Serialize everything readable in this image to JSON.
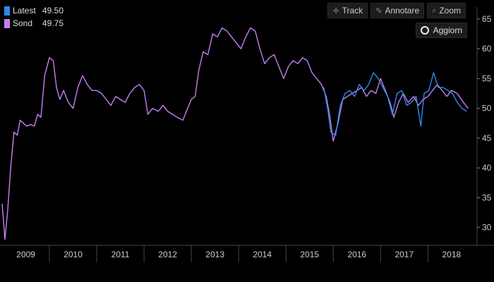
{
  "legend": {
    "items": [
      {
        "name": "Latest",
        "value": "49.50",
        "color": "#2b8be8"
      },
      {
        "name": "Sond",
        "value": "49.75",
        "color": "#c77ef2"
      }
    ]
  },
  "toolbar": {
    "track_label": "Track",
    "track_icon": "crosshair-icon",
    "annotate_label": "Annotare",
    "annotate_icon": "pencil-icon",
    "zoom_label": "Zoom",
    "zoom_icon": "magnifier-icon",
    "refresh_label": "Aggiorn",
    "refresh_icon": "refresh-icon"
  },
  "colors": {
    "background": "#000000",
    "axis_text": "#cccccc",
    "separator": "#444444"
  },
  "chart_data": {
    "type": "line",
    "ylim": [
      27,
      67
    ],
    "y_ticks": [
      "30",
      "35",
      "40",
      "45",
      "50",
      "55",
      "60",
      "65"
    ],
    "x_ticks": [
      "2009",
      "2010",
      "2011",
      "2012",
      "2013",
      "2014",
      "2015",
      "2016",
      "2017",
      "2018"
    ],
    "xlim": [
      2009,
      2018.95
    ],
    "grid": false,
    "legend_position": "top-left",
    "series": [
      {
        "name": "Sond",
        "color": "#c77ef2",
        "points": [
          [
            2009.0,
            34.0
          ],
          [
            2009.06,
            28.0
          ],
          [
            2009.12,
            33.0
          ],
          [
            2009.18,
            40.0
          ],
          [
            2009.25,
            46.0
          ],
          [
            2009.32,
            45.5
          ],
          [
            2009.38,
            48.0
          ],
          [
            2009.45,
            47.5
          ],
          [
            2009.52,
            47.0
          ],
          [
            2009.6,
            47.3
          ],
          [
            2009.68,
            47.0
          ],
          [
            2009.75,
            49.0
          ],
          [
            2009.82,
            48.5
          ],
          [
            2009.9,
            55.5
          ],
          [
            2010.0,
            58.5
          ],
          [
            2010.08,
            58.0
          ],
          [
            2010.15,
            53.5
          ],
          [
            2010.22,
            51.5
          ],
          [
            2010.3,
            53.0
          ],
          [
            2010.4,
            51.0
          ],
          [
            2010.5,
            50.0
          ],
          [
            2010.6,
            53.5
          ],
          [
            2010.7,
            55.5
          ],
          [
            2010.8,
            54.0
          ],
          [
            2010.9,
            53.0
          ],
          [
            2011.0,
            53.0
          ],
          [
            2011.1,
            52.5
          ],
          [
            2011.2,
            51.5
          ],
          [
            2011.3,
            50.5
          ],
          [
            2011.4,
            52.0
          ],
          [
            2011.5,
            51.5
          ],
          [
            2011.6,
            51.0
          ],
          [
            2011.7,
            52.5
          ],
          [
            2011.8,
            53.5
          ],
          [
            2011.9,
            54.0
          ],
          [
            2012.0,
            53.0
          ],
          [
            2012.08,
            49.0
          ],
          [
            2012.18,
            50.0
          ],
          [
            2012.3,
            49.5
          ],
          [
            2012.4,
            50.5
          ],
          [
            2012.5,
            49.5
          ],
          [
            2012.6,
            49.0
          ],
          [
            2012.7,
            48.5
          ],
          [
            2012.82,
            48.0
          ],
          [
            2012.92,
            50.0
          ],
          [
            2013.0,
            51.5
          ],
          [
            2013.08,
            52.0
          ],
          [
            2013.16,
            56.5
          ],
          [
            2013.25,
            59.5
          ],
          [
            2013.35,
            59.0
          ],
          [
            2013.45,
            62.5
          ],
          [
            2013.55,
            62.0
          ],
          [
            2013.65,
            63.5
          ],
          [
            2013.75,
            63.0
          ],
          [
            2013.85,
            62.0
          ],
          [
            2013.95,
            61.0
          ],
          [
            2014.05,
            60.0
          ],
          [
            2014.15,
            62.0
          ],
          [
            2014.25,
            63.5
          ],
          [
            2014.35,
            63.0
          ],
          [
            2014.45,
            60.0
          ],
          [
            2014.55,
            57.5
          ],
          [
            2014.65,
            58.5
          ],
          [
            2014.75,
            59.0
          ],
          [
            2014.85,
            57.0
          ],
          [
            2014.95,
            55.0
          ],
          [
            2015.05,
            57.0
          ],
          [
            2015.15,
            58.0
          ],
          [
            2015.25,
            57.5
          ],
          [
            2015.35,
            58.5
          ],
          [
            2015.45,
            58.0
          ],
          [
            2015.55,
            56.0
          ],
          [
            2015.65,
            55.0
          ],
          [
            2015.75,
            54.0
          ],
          [
            2015.85,
            52.0
          ],
          [
            2015.92,
            49.0
          ],
          [
            2016.0,
            44.5
          ],
          [
            2016.1,
            47.5
          ],
          [
            2016.2,
            51.5
          ],
          [
            2016.3,
            52.0
          ],
          [
            2016.4,
            52.5
          ],
          [
            2016.5,
            53.0
          ],
          [
            2016.6,
            53.5
          ],
          [
            2016.7,
            52.0
          ],
          [
            2016.8,
            53.0
          ],
          [
            2016.9,
            52.5
          ],
          [
            2017.0,
            55.0
          ],
          [
            2017.1,
            53.0
          ],
          [
            2017.2,
            51.0
          ],
          [
            2017.28,
            48.5
          ],
          [
            2017.38,
            51.0
          ],
          [
            2017.48,
            52.5
          ],
          [
            2017.58,
            51.0
          ],
          [
            2017.7,
            52.0
          ],
          [
            2017.8,
            50.5
          ],
          [
            2017.9,
            51.5
          ],
          [
            2018.0,
            52.0
          ],
          [
            2018.1,
            53.0
          ],
          [
            2018.2,
            54.0
          ],
          [
            2018.3,
            53.0
          ],
          [
            2018.4,
            52.0
          ],
          [
            2018.5,
            53.0
          ],
          [
            2018.62,
            52.5
          ],
          [
            2018.75,
            51.0
          ],
          [
            2018.85,
            50.0
          ]
        ]
      },
      {
        "name": "Latest",
        "color": "#2b8be8",
        "points": [
          [
            2015.8,
            53.5
          ],
          [
            2015.88,
            50.0
          ],
          [
            2015.95,
            46.0
          ],
          [
            2016.05,
            45.5
          ],
          [
            2016.15,
            50.5
          ],
          [
            2016.25,
            52.5
          ],
          [
            2016.35,
            53.0
          ],
          [
            2016.45,
            52.0
          ],
          [
            2016.55,
            54.0
          ],
          [
            2016.65,
            53.0
          ],
          [
            2016.75,
            54.0
          ],
          [
            2016.85,
            56.0
          ],
          [
            2016.95,
            55.0
          ],
          [
            2017.05,
            53.5
          ],
          [
            2017.15,
            52.0
          ],
          [
            2017.25,
            49.0
          ],
          [
            2017.35,
            52.5
          ],
          [
            2017.45,
            53.0
          ],
          [
            2017.55,
            50.5
          ],
          [
            2017.65,
            51.0
          ],
          [
            2017.75,
            52.0
          ],
          [
            2017.85,
            47.0
          ],
          [
            2017.92,
            52.5
          ],
          [
            2018.02,
            53.0
          ],
          [
            2018.12,
            56.0
          ],
          [
            2018.22,
            53.5
          ],
          [
            2018.32,
            53.5
          ],
          [
            2018.42,
            53.0
          ],
          [
            2018.52,
            52.5
          ],
          [
            2018.62,
            51.0
          ],
          [
            2018.72,
            50.0
          ],
          [
            2018.82,
            49.5
          ]
        ]
      }
    ]
  }
}
